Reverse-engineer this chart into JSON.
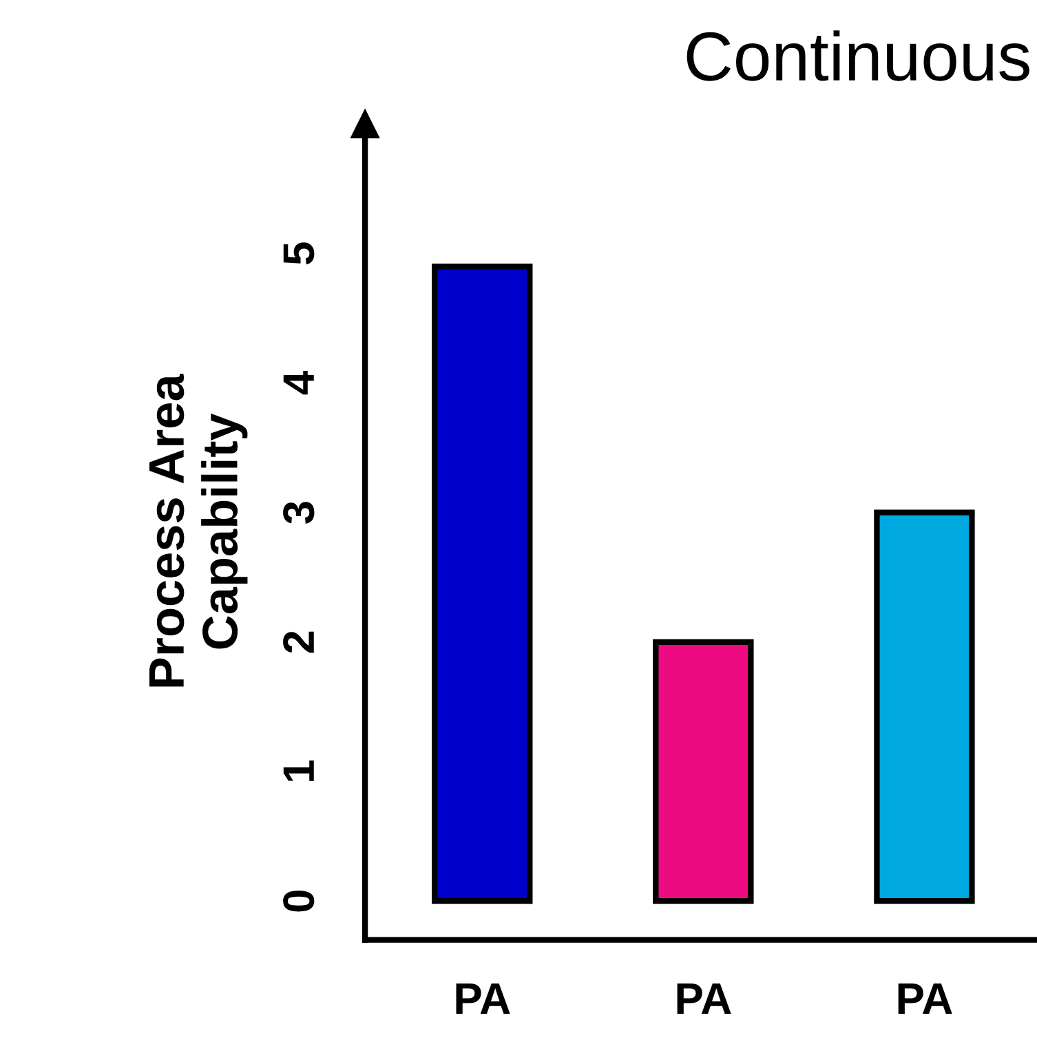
{
  "chart_data": {
    "type": "bar",
    "title": "Continuous",
    "ylabel": "Process Area\nCapability",
    "categories": [
      "PA",
      "PA",
      "PA"
    ],
    "values": [
      4.9,
      2,
      3
    ],
    "colors": [
      "#0000cc",
      "#ee0a80",
      "#00a8e0"
    ],
    "ylim": [
      -0.3,
      6
    ],
    "yticks": [
      0,
      1,
      2,
      3,
      4,
      5
    ],
    "grid": false,
    "legend": false
  }
}
